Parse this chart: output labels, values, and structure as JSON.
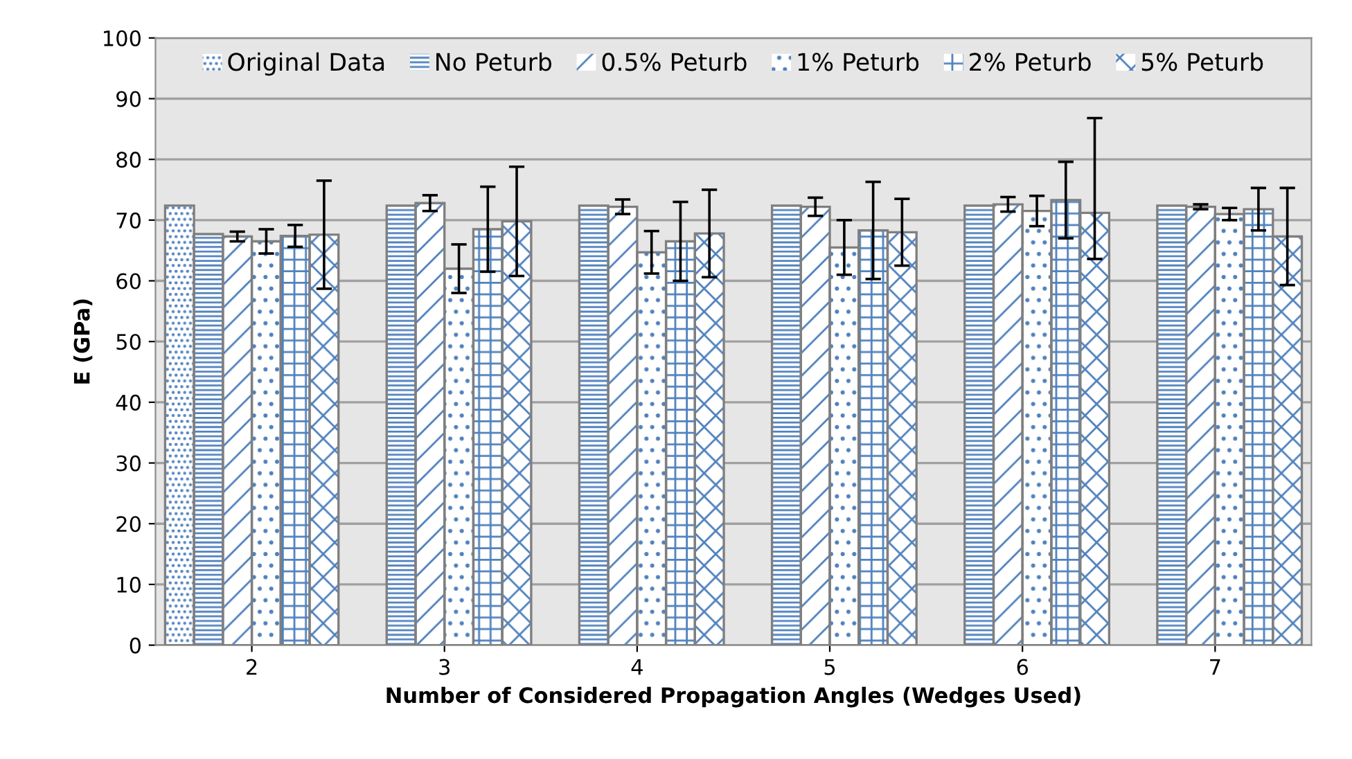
{
  "chart_data": {
    "type": "bar",
    "xlabel": "Number of Considered Propagation Angles (Wedges Used)",
    "ylabel": "E (GPa)",
    "categories": [
      "2",
      "3",
      "4",
      "5",
      "6",
      "7"
    ],
    "series": [
      {
        "name": "Original Data",
        "color": "#4f81bd",
        "values": [
          72.4,
          null,
          null,
          null,
          null,
          null
        ]
      },
      {
        "name": "No Peturb",
        "color": "#4f81bd",
        "values": [
          67.7,
          72.4,
          72.4,
          72.4,
          72.4,
          72.4
        ]
      },
      {
        "name": "0.5% Peturb",
        "color": "#4f81bd",
        "values": [
          67.3,
          72.8,
          72.2,
          72.2,
          72.6,
          72.2
        ],
        "errors": [
          0.8,
          1.3,
          1.2,
          1.5,
          1.2,
          0.4
        ]
      },
      {
        "name": "1% Peturb",
        "color": "#4f81bd",
        "values": [
          66.5,
          62.0,
          64.7,
          65.5,
          71.5,
          71.0
        ],
        "errors": [
          2,
          4,
          3.5,
          4.5,
          2.5,
          1
        ]
      },
      {
        "name": "2% Peturb",
        "color": "#4f81bd",
        "values": [
          67.4,
          68.5,
          66.5,
          68.3,
          73.3,
          71.8
        ],
        "errors": [
          1.8,
          7,
          6.5,
          8,
          6.3,
          3.5
        ]
      },
      {
        "name": "5% Peturb",
        "color": "#4f81bd",
        "values": [
          67.6,
          69.8,
          67.8,
          68.0,
          71.2,
          67.3
        ],
        "errors": [
          8.9,
          9,
          7.2,
          5.5,
          [
            63.6,
            86.8
          ],
          8
        ]
      }
    ],
    "ylim": [
      0,
      100
    ],
    "yticks": [
      0,
      10,
      20,
      30,
      40,
      50,
      60,
      70,
      80,
      90,
      100
    ],
    "grid": "y",
    "legend": "top"
  }
}
